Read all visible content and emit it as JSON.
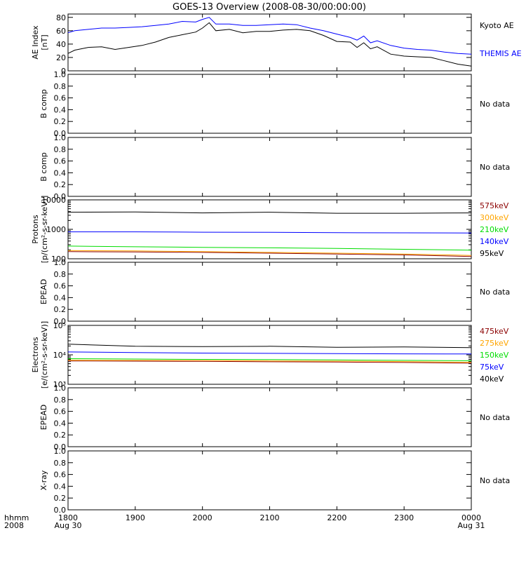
{
  "title": "GOES-13 Overview (2008-08-30/00:00:00)",
  "time_axis": {
    "label_top": "hhmm",
    "label_bottom": "2008",
    "ticks": [
      {
        "t": 0,
        "label": "1800",
        "sublabel": "Aug 30"
      },
      {
        "t": 1,
        "label": "1900",
        "sublabel": ""
      },
      {
        "t": 2,
        "label": "2000",
        "sublabel": ""
      },
      {
        "t": 3,
        "label": "2100",
        "sublabel": ""
      },
      {
        "t": 4,
        "label": "2200",
        "sublabel": ""
      },
      {
        "t": 5,
        "label": "2300",
        "sublabel": ""
      },
      {
        "t": 6,
        "label": "0000",
        "sublabel": "Aug 31"
      }
    ],
    "range_hours": [
      0,
      6
    ]
  },
  "chart_data": [
    {
      "type": "line",
      "ylabel": "AE Index",
      "ylabel2": "[nT]",
      "scale": "linear",
      "ylim": [
        0,
        85
      ],
      "yticks": [
        0,
        20,
        40,
        60,
        80
      ],
      "ytick_labels": [
        "0",
        "20",
        "40",
        "60",
        "80"
      ],
      "series": [
        {
          "name": "Kyoto AE",
          "color": "#000000",
          "x": [
            0,
            0.1,
            0.3,
            0.5,
            0.7,
            0.9,
            1.1,
            1.3,
            1.5,
            1.7,
            1.9,
            2.0,
            2.1,
            2.2,
            2.4,
            2.6,
            2.8,
            3.0,
            3.2,
            3.4,
            3.6,
            3.8,
            4.0,
            4.2,
            4.3,
            4.4,
            4.5,
            4.6,
            4.8,
            5.0,
            5.2,
            5.4,
            5.6,
            5.8,
            6.0
          ],
          "y": [
            26,
            31,
            35,
            36,
            32,
            35,
            38,
            43,
            50,
            54,
            58,
            64,
            72,
            60,
            62,
            57,
            59,
            59,
            61,
            62,
            60,
            53,
            44,
            43,
            35,
            42,
            33,
            36,
            25,
            22,
            21,
            20,
            15,
            10,
            7
          ]
        },
        {
          "name": "THEMIS AE",
          "color": "#0000ff",
          "x": [
            0,
            0.1,
            0.3,
            0.5,
            0.7,
            0.9,
            1.1,
            1.3,
            1.5,
            1.7,
            1.9,
            2.0,
            2.1,
            2.2,
            2.4,
            2.6,
            2.8,
            3.0,
            3.2,
            3.4,
            3.6,
            3.8,
            4.0,
            4.2,
            4.3,
            4.4,
            4.5,
            4.6,
            4.8,
            5.0,
            5.2,
            5.4,
            5.6,
            5.8,
            6.0
          ],
          "y": [
            57,
            60,
            62,
            64,
            64,
            65,
            66,
            68,
            70,
            74,
            73,
            77,
            80,
            70,
            70,
            68,
            68,
            69,
            70,
            69,
            64,
            60,
            55,
            50,
            46,
            52,
            42,
            45,
            38,
            34,
            32,
            31,
            28,
            26,
            25
          ]
        }
      ],
      "status": ""
    },
    {
      "type": "line",
      "ylabel": "B comp",
      "ylabel2": "",
      "scale": "linear",
      "ylim": [
        0,
        1
      ],
      "yticks": [
        0,
        0.2,
        0.4,
        0.6,
        0.8,
        1.0
      ],
      "ytick_labels": [
        "0.0",
        "0.2",
        "0.4",
        "0.6",
        "0.8",
        "1.0"
      ],
      "series": [],
      "status": "No data"
    },
    {
      "type": "line",
      "ylabel": "B comp",
      "ylabel2": "",
      "scale": "linear",
      "ylim": [
        0,
        1
      ],
      "yticks": [
        0,
        0.2,
        0.4,
        0.6,
        0.8,
        1.0
      ],
      "ytick_labels": [
        "0.0",
        "0.2",
        "0.4",
        "0.6",
        "0.8",
        "1.0"
      ],
      "series": [],
      "status": "No data"
    },
    {
      "type": "line",
      "ylabel": "Protons",
      "ylabel2": "[p/(cm²-s-sr-keV)]",
      "scale": "log",
      "ylim": [
        100,
        10000
      ],
      "yticks": [
        100,
        1000,
        10000
      ],
      "ytick_labels": [
        "100",
        "1000",
        "10000"
      ],
      "series": [
        {
          "name": "575keV",
          "color": "#8b0000",
          "x": [
            0,
            1,
            2,
            3,
            4,
            5,
            6
          ],
          "y": [
            175,
            170,
            165,
            155,
            145,
            135,
            120
          ]
        },
        {
          "name": "300keV",
          "color": "#ffa500",
          "x": [
            0,
            1,
            2,
            3,
            4,
            5,
            6
          ],
          "y": [
            190,
            185,
            175,
            165,
            155,
            145,
            130
          ]
        },
        {
          "name": "210keV",
          "color": "#00dd00",
          "x": [
            0,
            1,
            2,
            3,
            4,
            5,
            6
          ],
          "y": [
            270,
            255,
            245,
            235,
            225,
            210,
            195
          ]
        },
        {
          "name": "140keV",
          "color": "#0000ff",
          "x": [
            0,
            1,
            2,
            3,
            4,
            5,
            6
          ],
          "y": [
            820,
            820,
            800,
            790,
            770,
            760,
            750
          ]
        },
        {
          "name": "95keV",
          "color": "#000000",
          "x": [
            0,
            1,
            2,
            3,
            4,
            5,
            6
          ],
          "y": [
            3800,
            3900,
            3600,
            3800,
            3500,
            3500,
            3600
          ]
        }
      ],
      "status": ""
    },
    {
      "type": "line",
      "ylabel": "EPEAD",
      "ylabel2": "",
      "scale": "linear",
      "ylim": [
        0,
        1
      ],
      "yticks": [
        0,
        0.2,
        0.4,
        0.6,
        0.8,
        1.0
      ],
      "ytick_labels": [
        "0.0",
        "0.2",
        "0.4",
        "0.6",
        "0.8",
        "1.0"
      ],
      "series": [],
      "status": "No data"
    },
    {
      "type": "line",
      "ylabel": "Electrons",
      "ylabel2": "[e/(cm²-s-sr-keV)]",
      "scale": "log",
      "ylim": [
        1000,
        100000
      ],
      "yticks": [
        1000,
        10000,
        100000
      ],
      "ytick_labels": [
        "10³",
        "10⁴",
        "10⁵"
      ],
      "series": [
        {
          "name": "475keV",
          "color": "#8b0000",
          "x": [
            0,
            1,
            2,
            3,
            4,
            5,
            6
          ],
          "y": [
            6200,
            6100,
            6000,
            5800,
            5700,
            5500,
            5200
          ]
        },
        {
          "name": "275keV",
          "color": "#ffa500",
          "x": [
            0,
            1,
            2,
            3,
            4,
            5,
            6
          ],
          "y": [
            6600,
            6500,
            6400,
            6200,
            6100,
            5900,
            5600
          ]
        },
        {
          "name": "150keV",
          "color": "#00dd00",
          "x": [
            0,
            1,
            2,
            3,
            4,
            5,
            6
          ],
          "y": [
            7400,
            7200,
            7000,
            6900,
            6700,
            6500,
            6300
          ]
        },
        {
          "name": "75keV",
          "color": "#0000ff",
          "x": [
            0,
            1,
            2,
            3,
            4,
            5,
            6
          ],
          "y": [
            12500,
            12000,
            11500,
            11200,
            11000,
            10800,
            10700
          ]
        },
        {
          "name": "40keV",
          "color": "#000000",
          "x": [
            0,
            1,
            2,
            3,
            4,
            5,
            6
          ],
          "y": [
            23000,
            19500,
            19000,
            19500,
            18000,
            18500,
            17500
          ]
        }
      ],
      "status": ""
    },
    {
      "type": "line",
      "ylabel": "EPEAD",
      "ylabel2": "",
      "scale": "linear",
      "ylim": [
        0,
        1
      ],
      "yticks": [
        0,
        0.2,
        0.4,
        0.6,
        0.8,
        1.0
      ],
      "ytick_labels": [
        "0.0",
        "0.2",
        "0.4",
        "0.6",
        "0.8",
        "1.0"
      ],
      "series": [],
      "status": "No data"
    },
    {
      "type": "line",
      "ylabel": "X-ray",
      "ylabel2": "",
      "scale": "linear",
      "ylim": [
        0,
        1
      ],
      "yticks": [
        0,
        0.2,
        0.4,
        0.6,
        0.8,
        1.0
      ],
      "ytick_labels": [
        "0.0",
        "0.2",
        "0.4",
        "0.6",
        "0.8",
        "1.0"
      ],
      "series": [],
      "status": "No data"
    }
  ]
}
